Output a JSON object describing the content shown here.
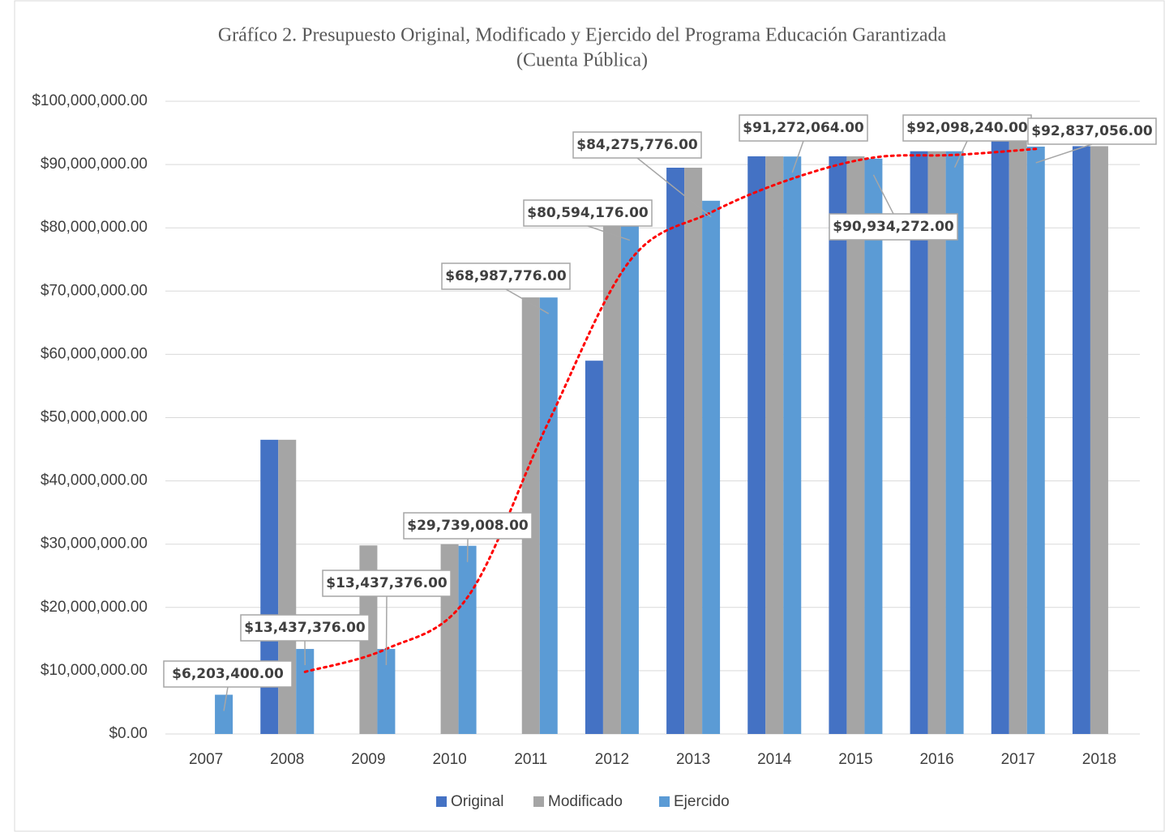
{
  "chart_data": {
    "type": "bar",
    "title": "Gráfíco 2.  Presupuesto Original, Modificado y Ejercido del Programa Educación Garantizada",
    "subtitle": "(Cuenta Pública)",
    "categories": [
      "2007",
      "2008",
      "2009",
      "2010",
      "2011",
      "2012",
      "2013",
      "2014",
      "2015",
      "2016",
      "2017",
      "2018"
    ],
    "series": [
      {
        "name": "Original",
        "color": "#4472c4",
        "values": [
          null,
          46500000,
          null,
          null,
          null,
          59000000,
          89500000,
          91300000,
          91300000,
          92100000,
          94000000,
          92900000
        ]
      },
      {
        "name": "Modificado",
        "color": "#a5a5a5",
        "values": [
          null,
          46500000,
          29800000,
          30000000,
          69000000,
          81000000,
          89500000,
          91300000,
          91300000,
          92100000,
          94000000,
          92900000
        ]
      },
      {
        "name": "Ejercido",
        "color": "#5b9bd5",
        "values": [
          6203400,
          13437376,
          13437376,
          29739008,
          68987776,
          80594176,
          84275776,
          91272064,
          90934272,
          92098240,
          92837056,
          null
        ],
        "value_labels": [
          "$6,203,400.00",
          "$13,437,376.00",
          "$13,437,376.00",
          "$29,739,008.00",
          "$68,987,776.00",
          "$80,594,176.00",
          "$84,275,776.00",
          "$91,272,064.00",
          "$90,934,272.00",
          "$92,098,240.00",
          "$92,837,056.00",
          null
        ]
      }
    ],
    "ylim": [
      0,
      100000000
    ],
    "yticks": [
      {
        "value": 0,
        "label": "$0.00"
      },
      {
        "value": 10000000,
        "label": "$10,000,000.00"
      },
      {
        "value": 20000000,
        "label": "$20,000,000.00"
      },
      {
        "value": 30000000,
        "label": "$30,000,000.00"
      },
      {
        "value": 40000000,
        "label": "$40,000,000.00"
      },
      {
        "value": 50000000,
        "label": "$50,000,000.00"
      },
      {
        "value": 60000000,
        "label": "$60,000,000.00"
      },
      {
        "value": 70000000,
        "label": "$70,000,000.00"
      },
      {
        "value": 80000000,
        "label": "$80,000,000.00"
      },
      {
        "value": 90000000,
        "label": "$90,000,000.00"
      },
      {
        "value": 100000000,
        "label": "$100,000,000.00"
      }
    ],
    "grid": true,
    "legend": "bottom",
    "trendline": {
      "type": "moving_average",
      "period": 2,
      "color": "#ff0000"
    }
  }
}
